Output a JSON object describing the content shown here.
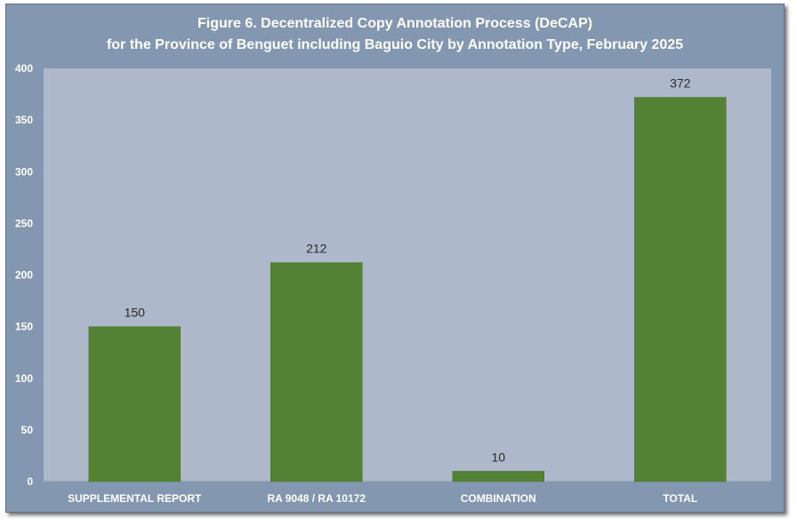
{
  "chart_data": {
    "type": "bar",
    "title": "Figure 6. Decentralized Copy Annotation Process (DeCAP)",
    "subtitle": "for the Province of Benguet including Baguio City by Annotation Type, February 2025",
    "categories": [
      "SUPPLEMENTAL REPORT",
      "RA 9048 / RA 10172",
      "COMBINATION",
      "TOTAL"
    ],
    "values": [
      150,
      212,
      10,
      372
    ],
    "data_labels": [
      "150",
      "212",
      "10",
      "372"
    ],
    "ylim": [
      0,
      400
    ],
    "yticks": [
      0,
      50,
      100,
      150,
      200,
      250,
      300,
      350,
      400
    ],
    "xlabel": "",
    "ylabel": "",
    "grid": false,
    "legend": "none",
    "colors": {
      "bar": "#548235",
      "plot_area": "#adb9ca",
      "frame": "#8497b0",
      "title_text": "#ffffff",
      "label_text": "#2b2b2b"
    }
  }
}
